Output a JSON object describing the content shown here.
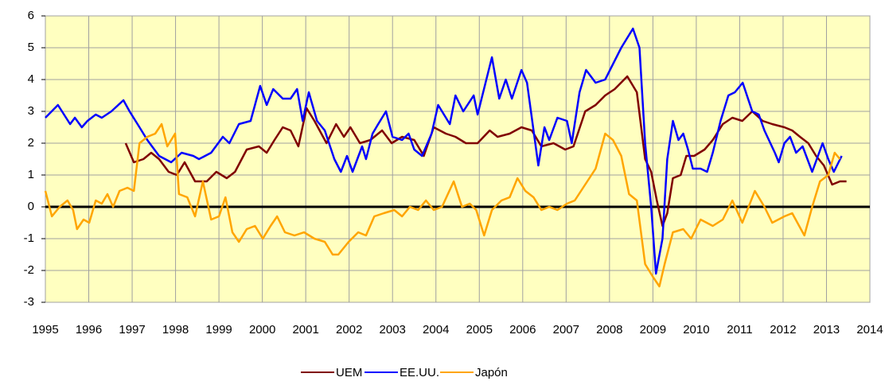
{
  "chart_data": {
    "type": "line",
    "xlim": [
      1995,
      2014
    ],
    "xticks": [
      1995,
      1996,
      1997,
      1998,
      1999,
      2000,
      2001,
      2002,
      2003,
      2004,
      2005,
      2006,
      2007,
      2008,
      2009,
      2010,
      2011,
      2012,
      2013,
      2014
    ],
    "ylim": [
      -3,
      6
    ],
    "yticks": [
      -3,
      -2,
      -1,
      0,
      1,
      2,
      3,
      4,
      5,
      6
    ],
    "grid": true,
    "legend": "bottom",
    "series": [
      {
        "name": "UEM",
        "color": "#800000",
        "x": [
          1996.85,
          1997.04,
          1997.26,
          1997.44,
          1997.62,
          1997.84,
          1998.03,
          1998.21,
          1998.45,
          1998.72,
          1998.94,
          1999.18,
          1999.37,
          1999.64,
          1999.92,
          2000.1,
          2000.28,
          2000.47,
          2000.65,
          2000.83,
          2001.02,
          2001.2,
          2001.48,
          2001.7,
          2001.88,
          2002.03,
          2002.25,
          2002.49,
          2002.76,
          2002.98,
          2003.22,
          2003.5,
          2003.72,
          2003.95,
          2004.23,
          2004.45,
          2004.69,
          2004.96,
          2005.24,
          2005.42,
          2005.7,
          2005.97,
          2006.21,
          2006.43,
          2006.71,
          2006.98,
          2007.17,
          2007.44,
          2007.68,
          2007.9,
          2008.12,
          2008.41,
          2008.63,
          2008.82,
          2008.96,
          2009.09,
          2009.22,
          2009.33,
          2009.46,
          2009.64,
          2009.77,
          2009.95,
          2010.19,
          2010.38,
          2010.61,
          2010.83,
          2011.06,
          2011.29,
          2011.53,
          2011.75,
          2012.03,
          2012.21,
          2012.39,
          2012.58,
          2012.76,
          2012.94,
          2013.13,
          2013.31,
          2013.46
        ],
        "values": [
          2.0,
          1.4,
          1.5,
          1.7,
          1.5,
          1.1,
          1.0,
          1.4,
          0.8,
          0.8,
          1.1,
          0.9,
          1.1,
          1.8,
          1.9,
          1.7,
          2.1,
          2.5,
          2.4,
          1.9,
          3.1,
          2.7,
          2.0,
          2.6,
          2.2,
          2.5,
          2.0,
          2.1,
          2.4,
          2.0,
          2.2,
          2.1,
          1.6,
          2.5,
          2.3,
          2.2,
          2.0,
          2.0,
          2.4,
          2.2,
          2.3,
          2.5,
          2.4,
          1.9,
          2.0,
          1.8,
          1.9,
          3.0,
          3.2,
          3.5,
          3.7,
          4.1,
          3.6,
          1.5,
          1.1,
          0.2,
          -0.6,
          -0.2,
          0.9,
          1.0,
          1.6,
          1.6,
          1.8,
          2.1,
          2.6,
          2.8,
          2.7,
          3.0,
          2.7,
          2.6,
          2.5,
          2.4,
          2.2,
          2.0,
          1.6,
          1.3,
          0.7,
          0.8,
          0.8
        ]
      },
      {
        "name": "EE.UU.",
        "color": "#0000ff",
        "x": [
          1995.0,
          1995.29,
          1995.57,
          1995.68,
          1995.84,
          1995.97,
          1996.16,
          1996.3,
          1996.52,
          1996.8,
          1996.94,
          1997.17,
          1997.35,
          1997.62,
          1997.9,
          1998.14,
          1998.41,
          1998.54,
          1998.82,
          1999.09,
          1999.24,
          1999.46,
          1999.73,
          1999.95,
          2000.1,
          2000.25,
          2000.47,
          2000.65,
          2000.8,
          2000.93,
          2001.07,
          2001.26,
          2001.44,
          2001.66,
          2001.81,
          2001.95,
          2002.08,
          2002.3,
          2002.39,
          2002.54,
          2002.67,
          2002.85,
          2003.0,
          2003.22,
          2003.37,
          2003.5,
          2003.68,
          2003.9,
          2004.05,
          2004.32,
          2004.45,
          2004.63,
          2004.87,
          2004.96,
          2005.29,
          2005.46,
          2005.61,
          2005.75,
          2005.97,
          2006.1,
          2006.36,
          2006.5,
          2006.61,
          2006.8,
          2007.02,
          2007.13,
          2007.31,
          2007.46,
          2007.68,
          2007.9,
          2008.27,
          2008.54,
          2008.69,
          2008.82,
          2008.96,
          2009.07,
          2009.22,
          2009.33,
          2009.46,
          2009.59,
          2009.7,
          2009.81,
          2009.92,
          2010.1,
          2010.25,
          2010.38,
          2010.56,
          2010.74,
          2010.89,
          2011.07,
          2011.29,
          2011.44,
          2011.57,
          2011.81,
          2011.9,
          2012.03,
          2012.16,
          2012.3,
          2012.45,
          2012.67,
          2012.91,
          2013.04,
          2013.17,
          2013.35
        ],
        "values": [
          2.8,
          3.2,
          2.6,
          2.8,
          2.5,
          2.7,
          2.9,
          2.8,
          3.0,
          3.35,
          3.0,
          2.5,
          2.1,
          1.6,
          1.4,
          1.7,
          1.6,
          1.5,
          1.7,
          2.2,
          2.0,
          2.6,
          2.7,
          3.8,
          3.2,
          3.7,
          3.4,
          3.4,
          3.7,
          2.7,
          3.6,
          2.7,
          2.4,
          1.5,
          1.1,
          1.6,
          1.1,
          1.9,
          1.5,
          2.3,
          2.6,
          3.0,
          2.2,
          2.1,
          2.3,
          1.8,
          1.6,
          2.3,
          3.2,
          2.6,
          3.5,
          3.0,
          3.5,
          2.9,
          4.7,
          3.4,
          4.0,
          3.4,
          4.3,
          3.9,
          1.3,
          2.5,
          2.1,
          2.8,
          2.7,
          2.0,
          3.6,
          4.3,
          3.9,
          4.0,
          5.0,
          5.6,
          5.0,
          2.0,
          0.0,
          -2.1,
          -1.0,
          1.5,
          2.7,
          2.1,
          2.3,
          1.8,
          1.2,
          1.2,
          1.1,
          1.7,
          2.7,
          3.5,
          3.6,
          3.9,
          3.0,
          2.9,
          2.4,
          1.7,
          1.4,
          2.0,
          2.2,
          1.7,
          1.9,
          1.1,
          2.0,
          1.5,
          1.1,
          1.6
        ]
      },
      {
        "name": "Japón",
        "color": "#ffa500",
        "x": [
          1995.0,
          1995.15,
          1995.33,
          1995.51,
          1995.64,
          1995.73,
          1995.88,
          1996.01,
          1996.16,
          1996.3,
          1996.43,
          1996.56,
          1996.71,
          1996.89,
          1997.04,
          1997.17,
          1997.35,
          1997.53,
          1997.68,
          1997.81,
          1997.99,
          1998.08,
          1998.27,
          1998.45,
          1998.63,
          1998.82,
          1999.0,
          1999.15,
          1999.31,
          1999.46,
          1999.64,
          1999.83,
          2000.01,
          2000.19,
          2000.34,
          2000.52,
          2000.74,
          2000.96,
          2001.2,
          2001.44,
          2001.62,
          2001.75,
          2001.99,
          2002.21,
          2002.39,
          2002.58,
          2002.8,
          2003.04,
          2003.22,
          2003.4,
          2003.59,
          2003.77,
          2003.95,
          2004.14,
          2004.41,
          2004.6,
          2004.78,
          2004.93,
          2005.11,
          2005.29,
          2005.51,
          2005.7,
          2005.88,
          2006.06,
          2006.25,
          2006.43,
          2006.61,
          2006.8,
          2007.02,
          2007.2,
          2007.44,
          2007.68,
          2007.9,
          2008.08,
          2008.27,
          2008.45,
          2008.63,
          2008.82,
          2009.0,
          2009.15,
          2009.27,
          2009.46,
          2009.7,
          2009.88,
          2010.1,
          2010.38,
          2010.61,
          2010.83,
          2011.06,
          2011.35,
          2011.57,
          2011.75,
          2012.03,
          2012.21,
          2012.49,
          2012.67,
          2012.85,
          2013.04,
          2013.19,
          2013.31
        ],
        "values": [
          0.5,
          -0.3,
          0.0,
          0.2,
          -0.1,
          -0.7,
          -0.4,
          -0.5,
          0.2,
          0.1,
          0.4,
          0.0,
          0.5,
          0.6,
          0.5,
          2.0,
          2.2,
          2.3,
          2.6,
          1.9,
          2.3,
          0.4,
          0.3,
          -0.3,
          0.8,
          -0.4,
          -0.3,
          0.3,
          -0.8,
          -1.1,
          -0.7,
          -0.6,
          -1.0,
          -0.6,
          -0.3,
          -0.8,
          -0.9,
          -0.8,
          -1.0,
          -1.1,
          -1.5,
          -1.5,
          -1.1,
          -0.8,
          -0.9,
          -0.3,
          -0.2,
          -0.1,
          -0.3,
          0.0,
          -0.1,
          0.2,
          -0.1,
          0.0,
          0.8,
          0.0,
          0.1,
          -0.1,
          -0.9,
          -0.1,
          0.2,
          0.3,
          0.9,
          0.5,
          0.3,
          -0.1,
          0.0,
          -0.1,
          0.1,
          0.2,
          0.7,
          1.2,
          2.3,
          2.1,
          1.6,
          0.4,
          0.2,
          -1.8,
          -2.2,
          -2.5,
          -1.8,
          -0.8,
          -0.7,
          -1.0,
          -0.4,
          -0.6,
          -0.4,
          0.2,
          -0.5,
          0.5,
          0.0,
          -0.5,
          -0.3,
          -0.2,
          -0.9,
          0.0,
          0.8,
          1.0,
          1.7,
          1.5
        ]
      }
    ]
  }
}
